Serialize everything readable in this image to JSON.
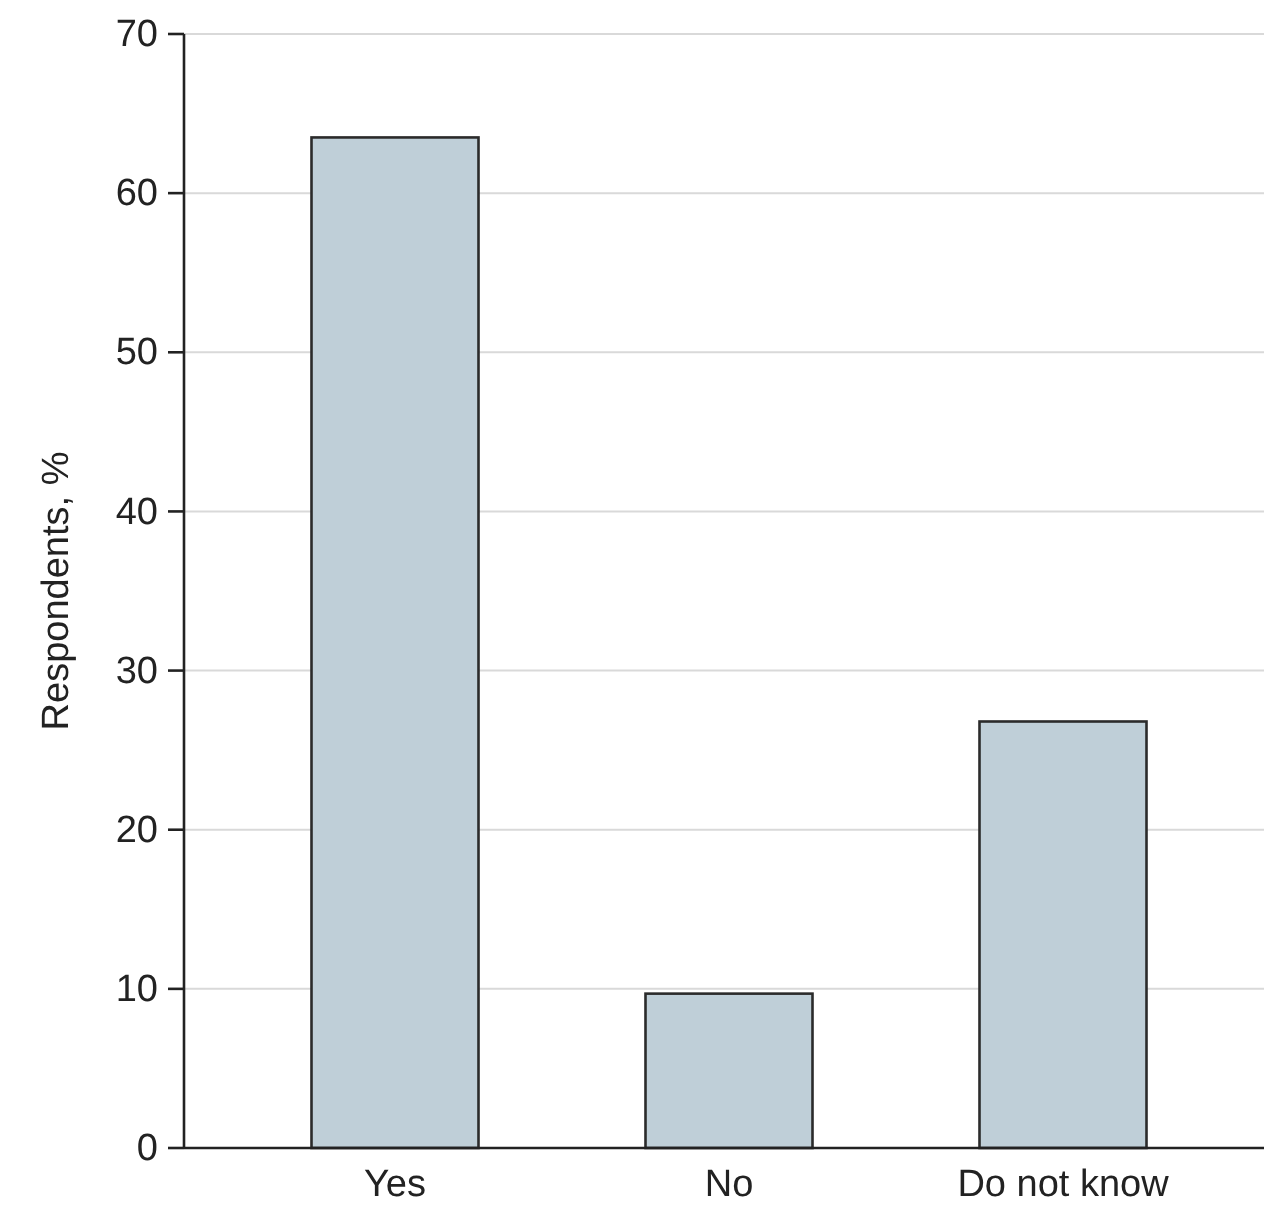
{
  "chart_data": {
    "type": "bar",
    "ylabel": "Respondents, %",
    "categories": [
      "Yes",
      "No",
      "Do not know"
    ],
    "values": [
      63.5,
      9.7,
      26.8
    ],
    "color": "#bfcfd8",
    "ylim": [
      0,
      70
    ],
    "yticks": [
      0,
      10,
      20,
      30,
      40,
      50,
      60,
      70
    ],
    "grid": "y"
  }
}
